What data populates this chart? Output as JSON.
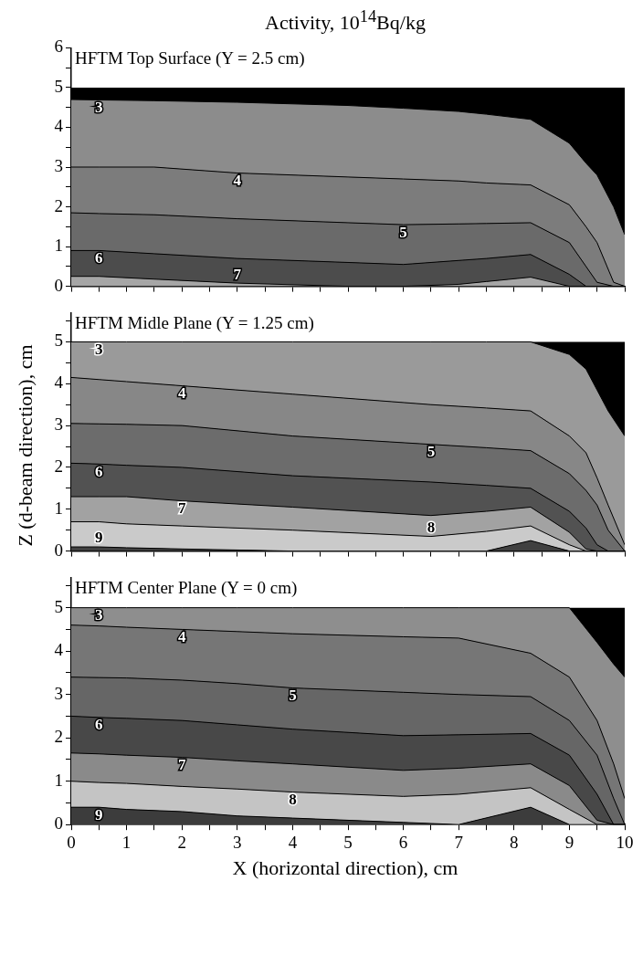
{
  "chart_data": [
    {
      "type": "area",
      "title": "Activity, 10$^{14}$Bq/kg",
      "subtitle": "HFTM Top Surface (Y = 2.5 cm)",
      "xlim": [
        0,
        10
      ],
      "ylim": [
        0,
        6
      ],
      "xticks": [
        0,
        {
          "value": 0.5,
          "label": null
        },
        1,
        {
          "value": 1.5,
          "label": null
        },
        2,
        {
          "value": 2.5,
          "label": null
        },
        3,
        {
          "value": 3.5,
          "label": null
        },
        4,
        {
          "value": 4.5,
          "label": null
        },
        5,
        {
          "value": 5.5,
          "label": null
        },
        6,
        {
          "value": 6.5,
          "label": null
        },
        7,
        {
          "value": 7.5,
          "label": null
        },
        8,
        {
          "value": 8.5,
          "label": null
        },
        9,
        {
          "value": 9.5,
          "label": null
        },
        10
      ],
      "yticks": [
        0,
        {
          "value": 0.5,
          "label": null
        },
        1,
        {
          "value": 1.5,
          "label": null
        },
        2,
        {
          "value": 2.5,
          "label": null
        },
        3,
        {
          "value": 3.5,
          "label": null
        },
        4,
        {
          "value": 4.5,
          "label": null
        },
        5,
        {
          "value": 5.5,
          "label": null
        },
        6
      ],
      "tick_labels": "y",
      "grid": false,
      "legend": false,
      "marker": "none",
      "bands": [
        {
          "axis": "y",
          "from": 0,
          "to": 5,
          "color": "#000000"
        }
      ],
      "x": [
        0,
        0.5,
        1.5,
        3,
        5,
        6,
        7,
        7.5,
        8.3,
        9,
        9.3,
        9.5,
        9.8,
        10
      ],
      "series": [
        {
          "name": "3",
          "color": "#8c8c8c",
          "values": [
            4.7,
            4.69,
            4.67,
            4.63,
            4.55,
            4.48,
            4.4,
            4.33,
            4.2,
            3.6,
            3.1,
            2.8,
            2.0,
            1.3
          ]
        },
        {
          "name": "4",
          "color": "#7c7c7c",
          "values": [
            3.0,
            3.0,
            3.0,
            2.85,
            2.75,
            2.7,
            2.65,
            2.6,
            2.55,
            2.05,
            1.5,
            1.1,
            0.1,
            0
          ]
        },
        {
          "name": "5",
          "color": "#6a6a6a",
          "values": [
            1.85,
            1.83,
            1.8,
            1.7,
            1.6,
            1.55,
            1.57,
            1.58,
            1.6,
            1.1,
            0.5,
            0.1,
            0,
            0
          ]
        },
        {
          "name": "6",
          "color": "#4c4c4c",
          "values": [
            0.9,
            0.9,
            0.82,
            0.7,
            0.6,
            0.55,
            0.65,
            0.7,
            0.8,
            0.3,
            0,
            0,
            0,
            0
          ]
        },
        {
          "name": "7",
          "color": "#a6a6a6",
          "values": [
            0.25,
            0.25,
            0.18,
            0.08,
            0,
            0,
            0.05,
            0.12,
            0.23,
            0,
            0,
            0,
            0,
            0
          ]
        }
      ]
    },
    {
      "type": "area",
      "subtitle": "HFTM Midle Plane (Y = 1.25 cm)",
      "ylabel": "Z (d-beam direction), cm",
      "xlim": [
        0,
        10
      ],
      "ylim": [
        0,
        5.7
      ],
      "xticks": [
        0,
        {
          "value": 0.5,
          "label": null
        },
        1,
        {
          "value": 1.5,
          "label": null
        },
        2,
        {
          "value": 2.5,
          "label": null
        },
        3,
        {
          "value": 3.5,
          "label": null
        },
        4,
        {
          "value": 4.5,
          "label": null
        },
        5,
        {
          "value": 5.5,
          "label": null
        },
        6,
        {
          "value": 6.5,
          "label": null
        },
        7,
        {
          "value": 7.5,
          "label": null
        },
        8,
        {
          "value": 8.5,
          "label": null
        },
        9,
        {
          "value": 9.5,
          "label": null
        },
        10
      ],
      "yticks": [
        0,
        {
          "value": 0.5,
          "label": null
        },
        1,
        {
          "value": 1.5,
          "label": null
        },
        2,
        {
          "value": 2.5,
          "label": null
        },
        3,
        {
          "value": 3.5,
          "label": null
        },
        4,
        {
          "value": 4.5,
          "label": null
        },
        5,
        {
          "value": 5.5,
          "label": null
        }
      ],
      "tick_labels": "y",
      "grid": false,
      "legend": false,
      "marker": "none",
      "bands": [
        {
          "axis": "y",
          "from": 0,
          "to": 5,
          "color": "#000000"
        }
      ],
      "x": [
        0,
        0.5,
        1,
        2,
        4,
        6.5,
        7.5,
        8.3,
        9,
        9.3,
        9.5,
        9.7,
        10
      ],
      "series": [
        {
          "name": "3",
          "color": "#9a9a9a",
          "values": [
            5,
            5,
            5,
            5,
            5,
            5,
            5,
            5,
            4.7,
            4.35,
            3.85,
            3.35,
            2.75
          ]
        },
        {
          "name": "4",
          "color": "#878787",
          "values": [
            4.15,
            4.1,
            4.05,
            3.95,
            3.75,
            3.5,
            3.42,
            3.35,
            2.75,
            2.35,
            1.75,
            1.1,
            0.15
          ]
        },
        {
          "name": "5",
          "color": "#6c6c6c",
          "values": [
            3.05,
            3.04,
            3.03,
            3.0,
            2.75,
            2.55,
            2.47,
            2.4,
            1.85,
            1.45,
            1.1,
            0.5,
            0
          ]
        },
        {
          "name": "6",
          "color": "#525252",
          "values": [
            2.1,
            2.08,
            2.05,
            2.0,
            1.8,
            1.65,
            1.57,
            1.5,
            0.95,
            0.55,
            0.15,
            0,
            0
          ]
        },
        {
          "name": "7",
          "color": "#a2a2a2",
          "values": [
            1.3,
            1.3,
            1.3,
            1.2,
            1.05,
            0.85,
            0.95,
            1.05,
            0.45,
            0.05,
            0,
            0,
            0
          ]
        },
        {
          "name": "8",
          "color": "#cacaca",
          "values": [
            0.7,
            0.7,
            0.65,
            0.6,
            0.5,
            0.35,
            0.47,
            0.6,
            0.15,
            0,
            0,
            0,
            0
          ]
        },
        {
          "name": "9",
          "color": "#404040",
          "values": [
            0.1,
            0.1,
            0.08,
            0.05,
            0,
            0,
            0,
            0.25,
            0,
            0,
            0,
            0,
            0
          ]
        }
      ]
    },
    {
      "type": "area",
      "subtitle": "HFTM Center Plane (Y = 0 cm)",
      "xlabel": "X (horizontal direction), cm",
      "xlim": [
        0,
        10
      ],
      "ylim": [
        0,
        5.7
      ],
      "xticks": [
        0,
        {
          "value": 0.5,
          "label": null
        },
        1,
        {
          "value": 1.5,
          "label": null
        },
        2,
        {
          "value": 2.5,
          "label": null
        },
        3,
        {
          "value": 3.5,
          "label": null
        },
        4,
        {
          "value": 4.5,
          "label": null
        },
        5,
        {
          "value": 5.5,
          "label": null
        },
        6,
        {
          "value": 6.5,
          "label": null
        },
        7,
        {
          "value": 7.5,
          "label": null
        },
        8,
        {
          "value": 8.5,
          "label": null
        },
        9,
        {
          "value": 9.5,
          "label": null
        },
        10
      ],
      "yticks": [
        0,
        {
          "value": 0.5,
          "label": null
        },
        1,
        {
          "value": 1.5,
          "label": null
        },
        2,
        {
          "value": 2.5,
          "label": null
        },
        3,
        {
          "value": 3.5,
          "label": null
        },
        4,
        {
          "value": 4.5,
          "label": null
        },
        5,
        {
          "value": 5.5,
          "label": null
        }
      ],
      "grid": false,
      "legend": false,
      "marker": "none",
      "bands": [
        {
          "axis": "y",
          "from": 0,
          "to": 5,
          "color": "#000000"
        }
      ],
      "x": [
        0,
        0.5,
        1,
        2,
        3,
        4,
        6,
        7,
        8.3,
        9,
        9.5,
        9.8,
        10
      ],
      "series": [
        {
          "name": "3",
          "color": "#8e8e8e",
          "values": [
            5,
            5,
            5,
            5,
            5,
            5,
            5,
            5,
            5,
            5,
            4.2,
            3.7,
            3.4
          ]
        },
        {
          "name": "4",
          "color": "#767676",
          "values": [
            4.6,
            4.58,
            4.55,
            4.5,
            4.45,
            4.4,
            4.33,
            4.3,
            3.95,
            3.4,
            2.4,
            1.4,
            0.6
          ]
        },
        {
          "name": "5",
          "color": "#666666",
          "values": [
            3.4,
            3.39,
            3.38,
            3.33,
            3.25,
            3.15,
            3.05,
            3.0,
            2.95,
            2.4,
            1.6,
            0.6,
            0
          ]
        },
        {
          "name": "6",
          "color": "#484848",
          "values": [
            2.5,
            2.47,
            2.45,
            2.4,
            2.3,
            2.2,
            2.05,
            2.07,
            2.1,
            1.6,
            0.7,
            0,
            0
          ]
        },
        {
          "name": "7",
          "color": "#8a8a8a",
          "values": [
            1.65,
            1.63,
            1.6,
            1.55,
            1.47,
            1.4,
            1.25,
            1.3,
            1.4,
            0.9,
            0.1,
            0,
            0
          ]
        },
        {
          "name": "8",
          "color": "#c4c4c4",
          "values": [
            1.0,
            0.97,
            0.95,
            0.88,
            0.82,
            0.75,
            0.65,
            0.7,
            0.85,
            0.35,
            0,
            0,
            0
          ]
        },
        {
          "name": "9",
          "color": "#3c3c3c",
          "values": [
            0.4,
            0.4,
            0.35,
            0.3,
            0.2,
            0.15,
            0.05,
            0,
            0.4,
            0,
            0,
            0,
            0
          ]
        }
      ]
    }
  ]
}
